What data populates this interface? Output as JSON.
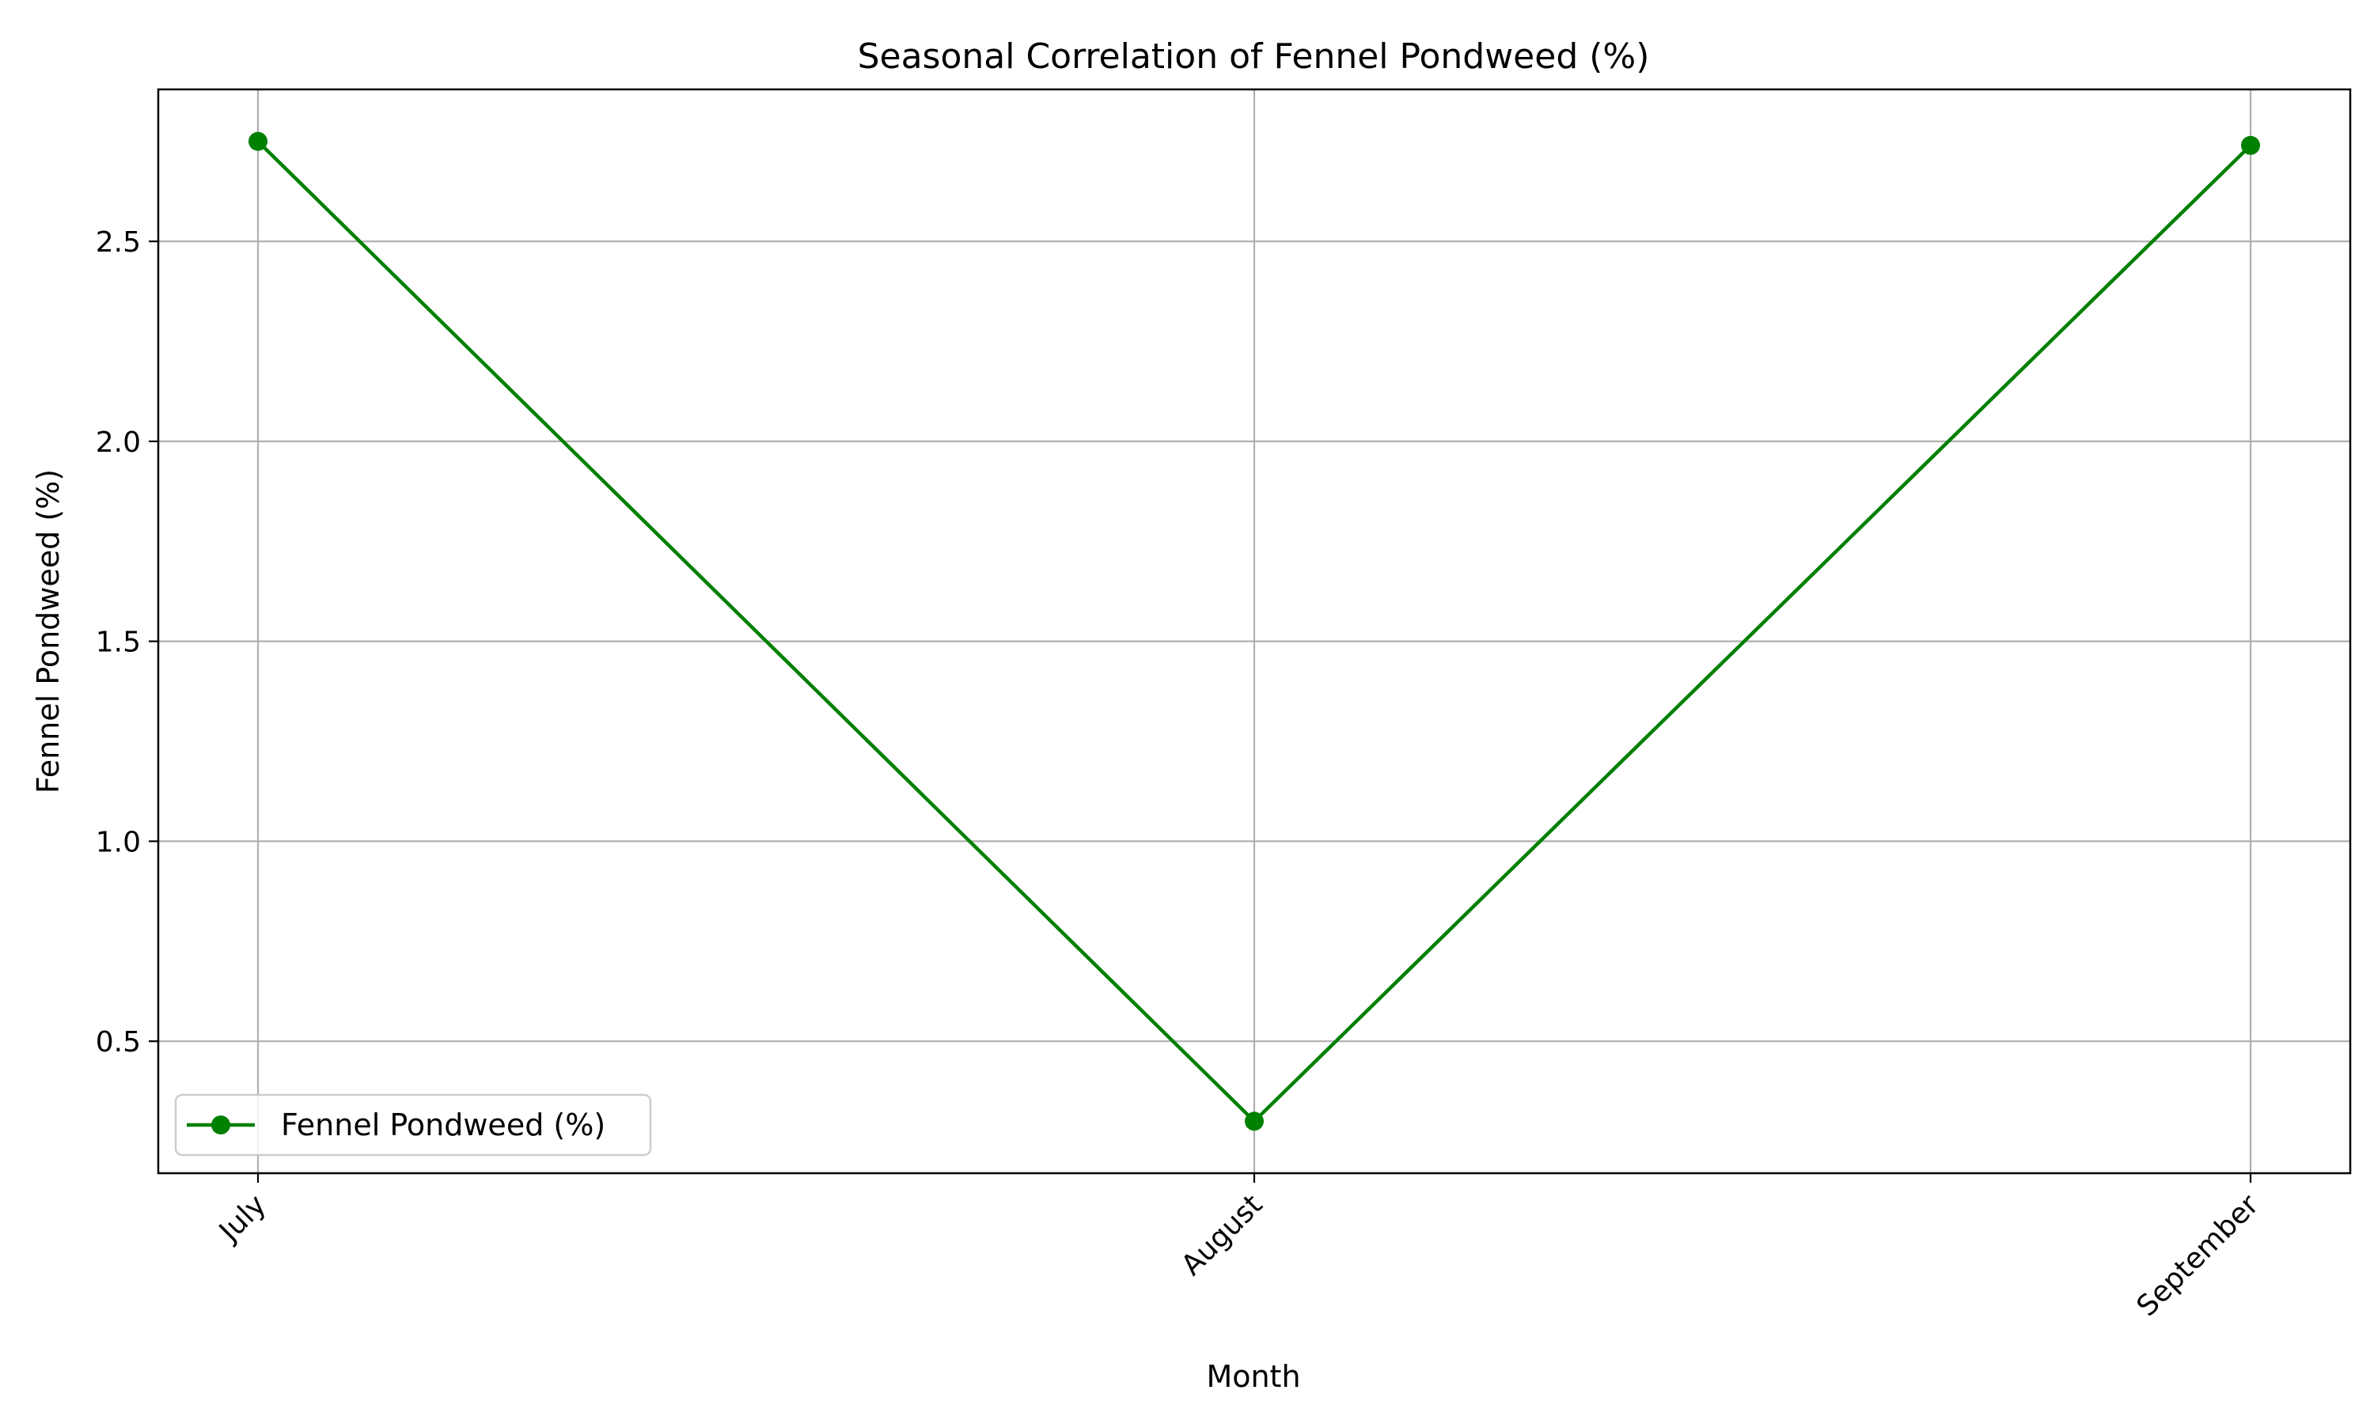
{
  "chart_data": {
    "type": "line",
    "title": "Seasonal Correlation of Fennel Pondweed (%)",
    "xlabel": "Month",
    "ylabel": "Fennel Pondweed (%)",
    "categories": [
      "July",
      "August",
      "September"
    ],
    "series": [
      {
        "name": "Fennel Pondweed (%)",
        "values": [
          2.75,
          0.3,
          2.74
        ],
        "color": "#008000",
        "marker": "circle"
      }
    ],
    "ylim": [
      0.17,
      2.88
    ],
    "yticks": [
      0.5,
      1.0,
      1.5,
      2.0,
      2.5
    ],
    "ytick_labels": [
      "0.5",
      "1.0",
      "1.5",
      "2.0",
      "2.5"
    ],
    "grid": true,
    "legend_position": "lower-left",
    "xtick_rotation": 45
  }
}
